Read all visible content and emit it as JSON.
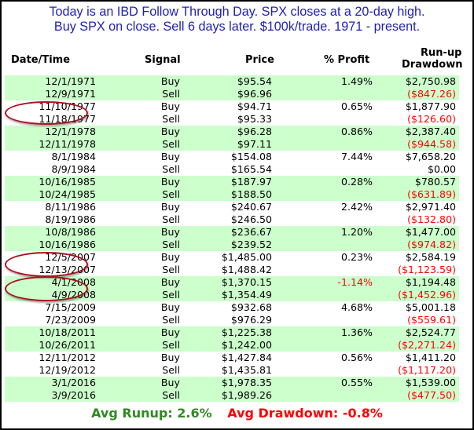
{
  "header": {
    "line1": "Today is an IBD Follow Through Day. SPX closes at a 20-day high.",
    "line2": "Buy SPX on close. Sell 6 days later. $100k/trade. 1971 - present."
  },
  "columns": {
    "date": "Date/Time",
    "signal": "Signal",
    "price": "Price",
    "pct": "% Profit",
    "run1": "Run-up",
    "run2": "Drawdown"
  },
  "chart_data": {
    "type": "table",
    "rows": [
      {
        "date": "12/1/1971",
        "signal": "Buy",
        "price": "$95.54",
        "pct": "1.49%",
        "run": "$2,750.98"
      },
      {
        "date": "12/9/1971",
        "signal": "Sell",
        "price": "$96.96",
        "pct": "",
        "run": "($847.26)"
      },
      {
        "date": "11/10/1977",
        "signal": "Buy",
        "price": "$94.71",
        "pct": "0.65%",
        "run": "$1,877.90"
      },
      {
        "date": "11/18/1977",
        "signal": "Sell",
        "price": "$95.33",
        "pct": "",
        "run": "($126.60)"
      },
      {
        "date": "12/1/1978",
        "signal": "Buy",
        "price": "$96.28",
        "pct": "0.86%",
        "run": "$2,387.40"
      },
      {
        "date": "12/11/1978",
        "signal": "Sell",
        "price": "$97.11",
        "pct": "",
        "run": "($944.58)"
      },
      {
        "date": "8/1/1984",
        "signal": "Buy",
        "price": "$154.08",
        "pct": "7.44%",
        "run": "$7,658.20"
      },
      {
        "date": "8/9/1984",
        "signal": "Sell",
        "price": "$165.54",
        "pct": "",
        "run": "$0.00"
      },
      {
        "date": "10/16/1985",
        "signal": "Buy",
        "price": "$187.97",
        "pct": "0.28%",
        "run": "$780.57"
      },
      {
        "date": "10/24/1985",
        "signal": "Sell",
        "price": "$188.50",
        "pct": "",
        "run": "($631.89)"
      },
      {
        "date": "8/11/1986",
        "signal": "Buy",
        "price": "$240.67",
        "pct": "2.42%",
        "run": "$2,971.40"
      },
      {
        "date": "8/19/1986",
        "signal": "Sell",
        "price": "$246.50",
        "pct": "",
        "run": "($132.80)"
      },
      {
        "date": "10/8/1986",
        "signal": "Buy",
        "price": "$236.67",
        "pct": "1.20%",
        "run": "$1,477.00"
      },
      {
        "date": "10/16/1986",
        "signal": "Sell",
        "price": "$239.52",
        "pct": "",
        "run": "($974.82)"
      },
      {
        "date": "12/5/2007",
        "signal": "Buy",
        "price": "$1,485.00",
        "pct": "0.23%",
        "run": "$2,584.19"
      },
      {
        "date": "12/13/2007",
        "signal": "Sell",
        "price": "$1,488.42",
        "pct": "",
        "run": "($1,123.59)"
      },
      {
        "date": "4/1/2008",
        "signal": "Buy",
        "price": "$1,370.15",
        "pct": "-1.14%",
        "run": "$1,194.48"
      },
      {
        "date": "4/9/2008",
        "signal": "Sell",
        "price": "$1,354.49",
        "pct": "",
        "run": "($1,452.96)"
      },
      {
        "date": "7/15/2009",
        "signal": "Buy",
        "price": "$932.68",
        "pct": "4.68%",
        "run": "$5,001.18"
      },
      {
        "date": "7/23/2009",
        "signal": "Sell",
        "price": "$976.29",
        "pct": "",
        "run": "($559.61)"
      },
      {
        "date": "10/18/2011",
        "signal": "Buy",
        "price": "$1,225.38",
        "pct": "1.36%",
        "run": "$2,524.77"
      },
      {
        "date": "10/26/2011",
        "signal": "Sell",
        "price": "$1,242.00",
        "pct": "",
        "run": "($2,271.24)"
      },
      {
        "date": "12/11/2012",
        "signal": "Buy",
        "price": "$1,427.84",
        "pct": "0.56%",
        "run": "$1,411.20"
      },
      {
        "date": "12/19/2012",
        "signal": "Sell",
        "price": "$1,435.81",
        "pct": "",
        "run": "($1,117.20)"
      },
      {
        "date": "3/1/2016",
        "signal": "Buy",
        "price": "$1,978.35",
        "pct": "0.55%",
        "run": "$1,539.00"
      },
      {
        "date": "3/9/2016",
        "signal": "Sell",
        "price": "$1,989.26",
        "pct": "",
        "run": "($477.50)"
      }
    ]
  },
  "footer": {
    "avg_runup": "Avg Runup: 2.6%",
    "avg_drawdown": "Avg Drawdown: -0.8%"
  },
  "colors": {
    "title": "#1f1fb4",
    "row_highlight": "#ccffcc",
    "negative": "#ff0000",
    "runup_summary": "#2e8b20",
    "oval_marker": "#b01020"
  }
}
